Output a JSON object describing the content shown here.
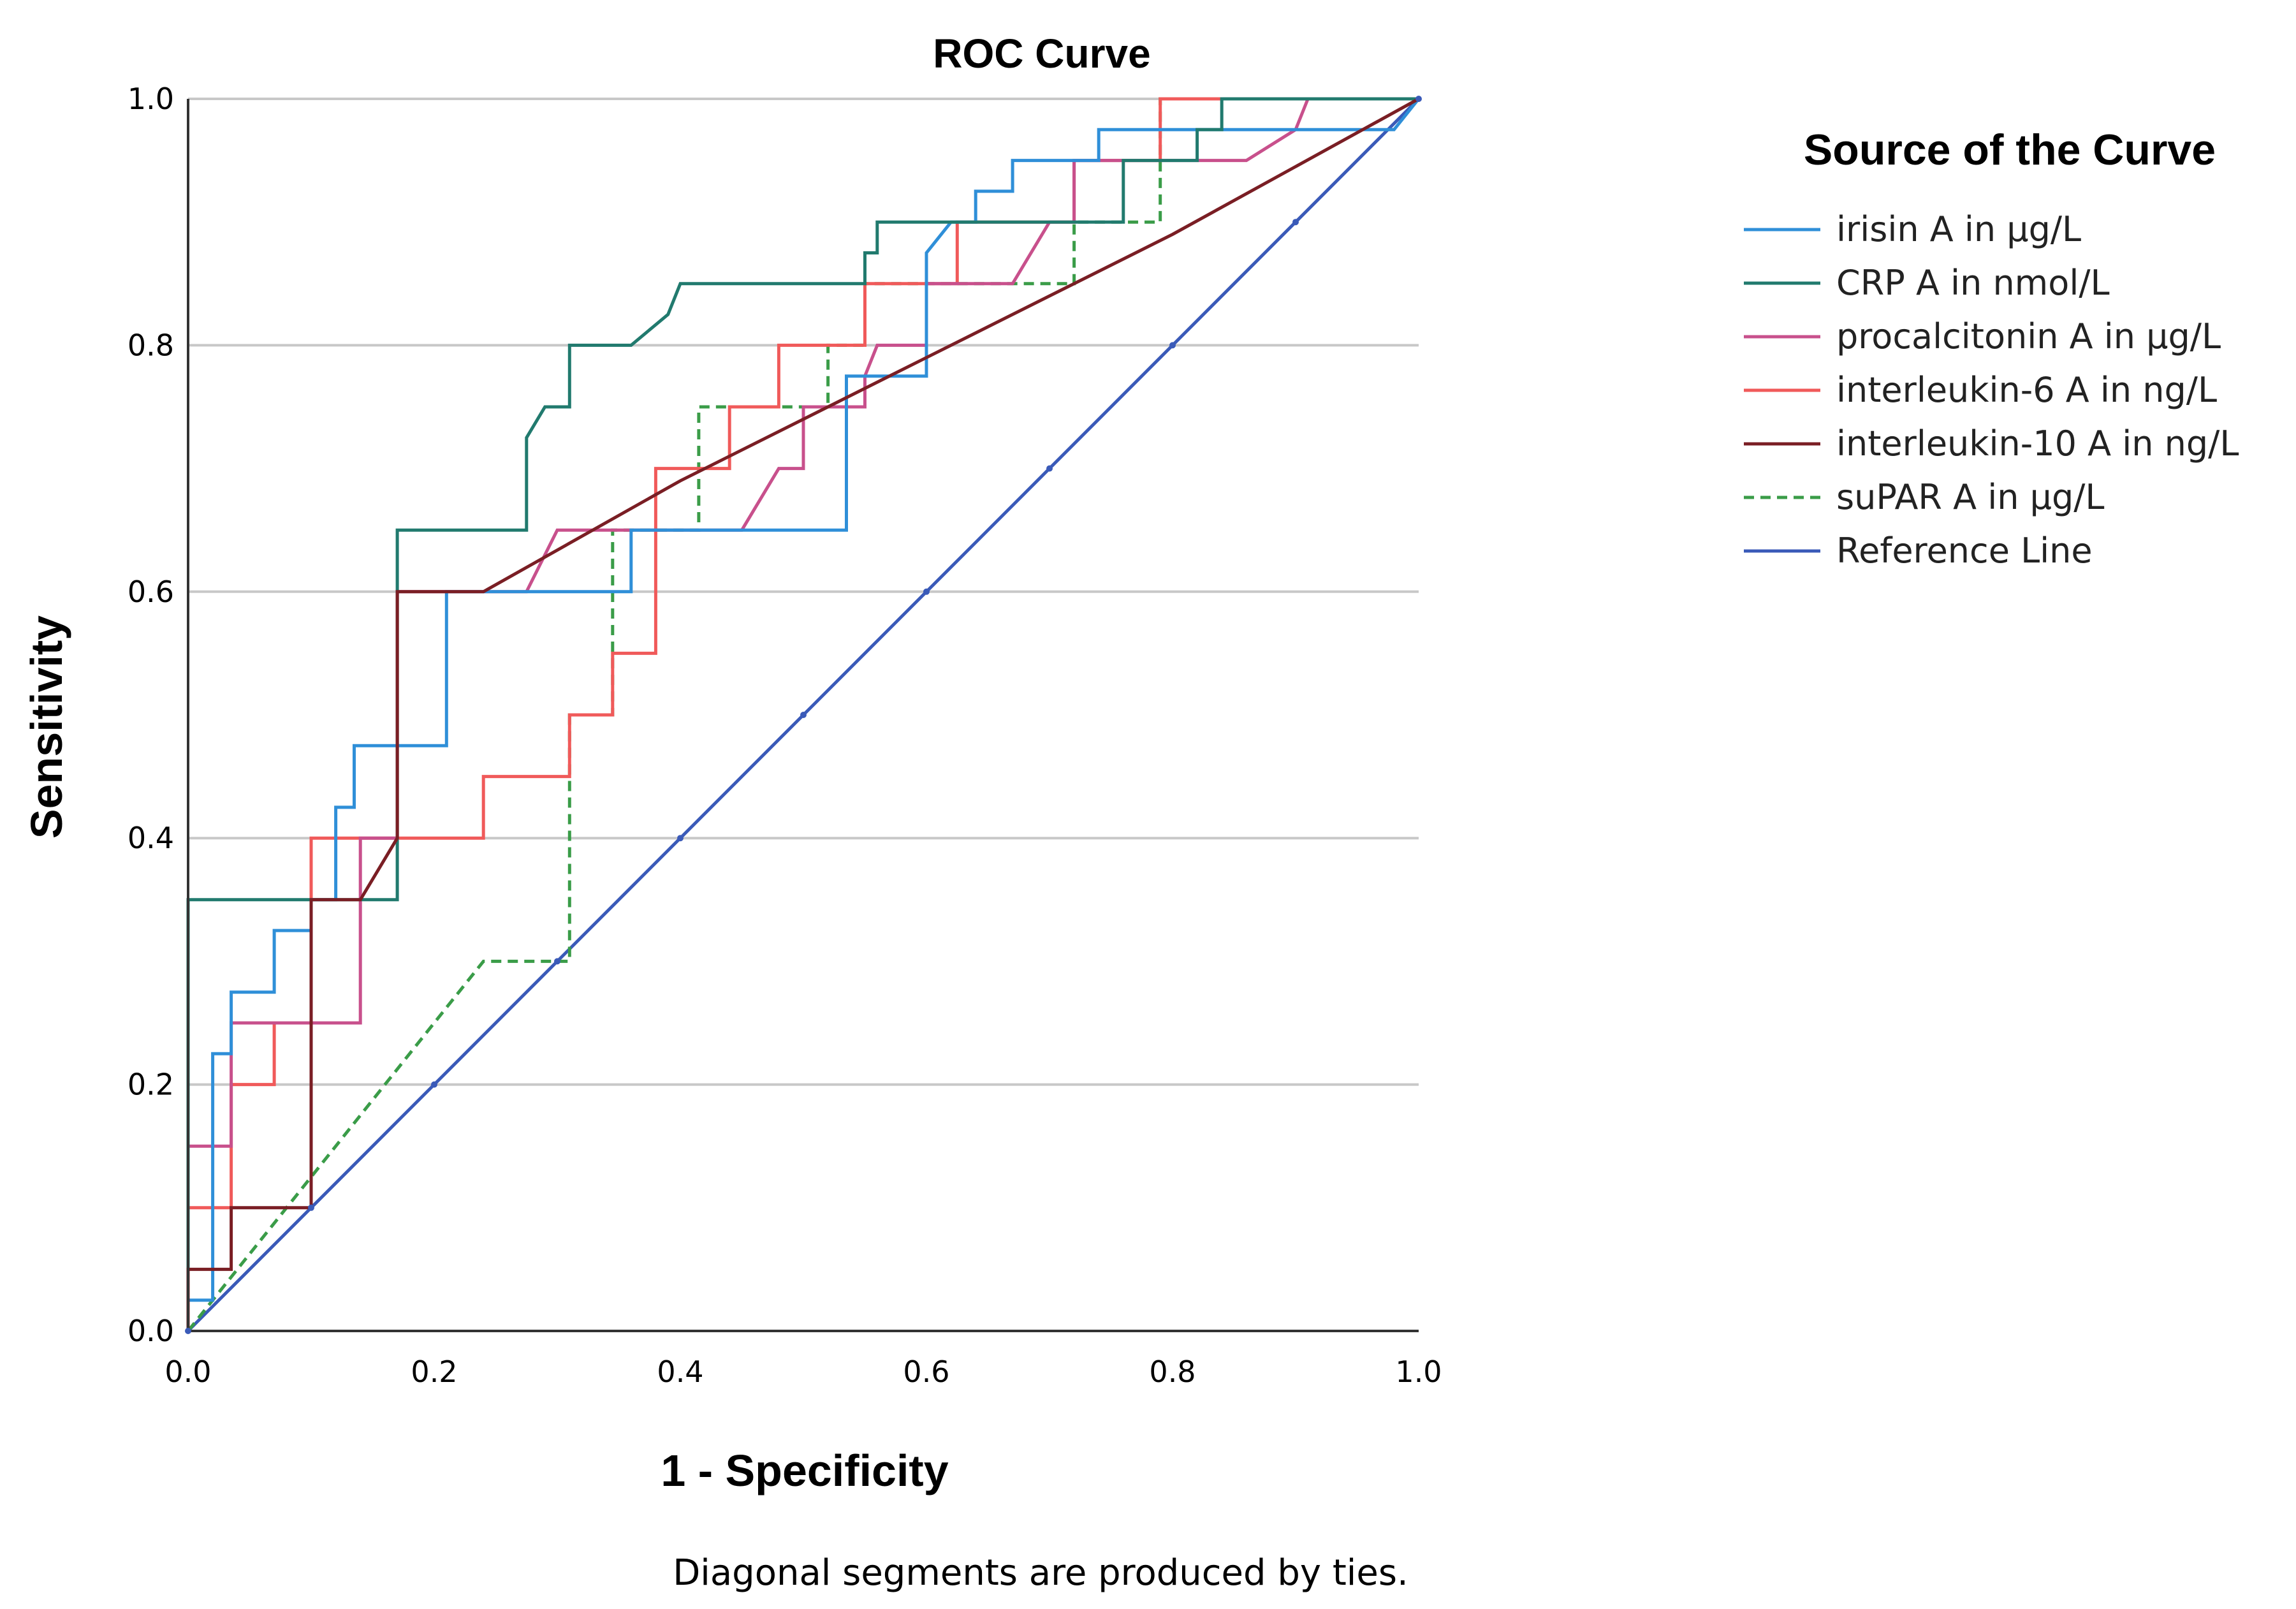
{
  "chart_data": {
    "type": "line",
    "title": "ROC Curve",
    "xlabel": "1 - Specificity",
    "ylabel": "Sensitivity",
    "xlim": [
      0,
      1
    ],
    "ylim": [
      0,
      1
    ],
    "x_ticks": [
      "0.0",
      "0.2",
      "0.4",
      "0.6",
      "0.8",
      "1.0"
    ],
    "y_ticks": [
      "0.0",
      "0.2",
      "0.4",
      "0.6",
      "0.8",
      "1.0"
    ],
    "grid": "horizontal",
    "legend_title": "Source of the Curve",
    "legend_position": "right",
    "footnote": "Diagonal segments are produced by ties.",
    "series": [
      {
        "name": "irisin A in µg/L",
        "color": "#2f8fd8",
        "dashed": false,
        "points": [
          [
            0,
            0
          ],
          [
            0,
            0.025
          ],
          [
            0.02,
            0.025
          ],
          [
            0.02,
            0.225
          ],
          [
            0.035,
            0.225
          ],
          [
            0.035,
            0.275
          ],
          [
            0.07,
            0.275
          ],
          [
            0.07,
            0.325
          ],
          [
            0.1,
            0.325
          ],
          [
            0.1,
            0.35
          ],
          [
            0.12,
            0.35
          ],
          [
            0.12,
            0.425
          ],
          [
            0.135,
            0.425
          ],
          [
            0.135,
            0.475
          ],
          [
            0.21,
            0.475
          ],
          [
            0.21,
            0.6
          ],
          [
            0.36,
            0.6
          ],
          [
            0.36,
            0.65
          ],
          [
            0.535,
            0.65
          ],
          [
            0.535,
            0.775
          ],
          [
            0.6,
            0.775
          ],
          [
            0.6,
            0.875
          ],
          [
            0.62,
            0.9
          ],
          [
            0.64,
            0.9
          ],
          [
            0.64,
            0.925
          ],
          [
            0.67,
            0.925
          ],
          [
            0.67,
            0.95
          ],
          [
            0.74,
            0.95
          ],
          [
            0.74,
            0.975
          ],
          [
            0.98,
            0.975
          ],
          [
            1,
            1
          ]
        ]
      },
      {
        "name": "CRP A in nmol/L",
        "color": "#217a6e",
        "dashed": false,
        "points": [
          [
            0,
            0
          ],
          [
            0,
            0.35
          ],
          [
            0.17,
            0.35
          ],
          [
            0.17,
            0.65
          ],
          [
            0.275,
            0.65
          ],
          [
            0.275,
            0.725
          ],
          [
            0.29,
            0.75
          ],
          [
            0.31,
            0.75
          ],
          [
            0.31,
            0.8
          ],
          [
            0.36,
            0.8
          ],
          [
            0.39,
            0.825
          ],
          [
            0.4,
            0.85
          ],
          [
            0.55,
            0.85
          ],
          [
            0.55,
            0.875
          ],
          [
            0.56,
            0.875
          ],
          [
            0.56,
            0.9
          ],
          [
            0.76,
            0.9
          ],
          [
            0.76,
            0.95
          ],
          [
            0.82,
            0.95
          ],
          [
            0.82,
            0.975
          ],
          [
            0.84,
            0.975
          ],
          [
            0.84,
            1
          ],
          [
            1,
            1
          ]
        ]
      },
      {
        "name": "procalcitonin A in µg/L",
        "color": "#c8508c",
        "dashed": false,
        "points": [
          [
            0,
            0
          ],
          [
            0,
            0.15
          ],
          [
            0.035,
            0.15
          ],
          [
            0.035,
            0.25
          ],
          [
            0.14,
            0.25
          ],
          [
            0.14,
            0.4
          ],
          [
            0.17,
            0.4
          ],
          [
            0.17,
            0.6
          ],
          [
            0.275,
            0.6
          ],
          [
            0.3,
            0.65
          ],
          [
            0.45,
            0.65
          ],
          [
            0.48,
            0.7
          ],
          [
            0.5,
            0.7
          ],
          [
            0.5,
            0.75
          ],
          [
            0.55,
            0.75
          ],
          [
            0.55,
            0.775
          ],
          [
            0.56,
            0.8
          ],
          [
            0.6,
            0.8
          ],
          [
            0.6,
            0.85
          ],
          [
            0.67,
            0.85
          ],
          [
            0.7,
            0.9
          ],
          [
            0.72,
            0.9
          ],
          [
            0.72,
            0.95
          ],
          [
            0.86,
            0.95
          ],
          [
            0.9,
            0.975
          ],
          [
            0.91,
            1
          ],
          [
            1,
            1
          ]
        ]
      },
      {
        "name": "interleukin-6 A in ng/L",
        "color": "#f05a5a",
        "dashed": false,
        "points": [
          [
            0,
            0
          ],
          [
            0,
            0.1
          ],
          [
            0.035,
            0.1
          ],
          [
            0.035,
            0.2
          ],
          [
            0.07,
            0.2
          ],
          [
            0.07,
            0.25
          ],
          [
            0.1,
            0.25
          ],
          [
            0.1,
            0.4
          ],
          [
            0.24,
            0.4
          ],
          [
            0.24,
            0.45
          ],
          [
            0.31,
            0.45
          ],
          [
            0.31,
            0.5
          ],
          [
            0.345,
            0.5
          ],
          [
            0.345,
            0.55
          ],
          [
            0.38,
            0.55
          ],
          [
            0.38,
            0.7
          ],
          [
            0.44,
            0.7
          ],
          [
            0.44,
            0.75
          ],
          [
            0.48,
            0.75
          ],
          [
            0.48,
            0.8
          ],
          [
            0.55,
            0.8
          ],
          [
            0.55,
            0.85
          ],
          [
            0.625,
            0.85
          ],
          [
            0.625,
            0.9
          ],
          [
            0.72,
            0.9
          ],
          [
            0.72,
            0.95
          ],
          [
            0.79,
            0.95
          ],
          [
            0.79,
            1
          ],
          [
            1,
            1
          ]
        ]
      },
      {
        "name": "interleukin-10 A in ng/L",
        "color": "#7a1e24",
        "dashed": false,
        "points": [
          [
            0,
            0
          ],
          [
            0,
            0.05
          ],
          [
            0.035,
            0.05
          ],
          [
            0.035,
            0.1
          ],
          [
            0.1,
            0.1
          ],
          [
            0.1,
            0.35
          ],
          [
            0.14,
            0.35
          ],
          [
            0.17,
            0.4
          ],
          [
            0.17,
            0.6
          ],
          [
            0.24,
            0.6
          ],
          [
            0.4,
            0.69
          ],
          [
            0.6,
            0.79
          ],
          [
            0.8,
            0.89
          ],
          [
            1,
            1
          ]
        ]
      },
      {
        "name": "suPAR A in µg/L",
        "color": "#3a9c48",
        "dashed": true,
        "points": [
          [
            0,
            0
          ],
          [
            0.1,
            0.125
          ],
          [
            0.24,
            0.3
          ],
          [
            0.31,
            0.3
          ],
          [
            0.31,
            0.5
          ],
          [
            0.345,
            0.5
          ],
          [
            0.345,
            0.65
          ],
          [
            0.415,
            0.65
          ],
          [
            0.415,
            0.75
          ],
          [
            0.52,
            0.75
          ],
          [
            0.52,
            0.8
          ],
          [
            0.55,
            0.8
          ],
          [
            0.55,
            0.85
          ],
          [
            0.72,
            0.85
          ],
          [
            0.72,
            0.9
          ],
          [
            0.79,
            0.9
          ],
          [
            0.79,
            1
          ],
          [
            1,
            1
          ]
        ]
      },
      {
        "name": "Reference Line",
        "color": "#3a5ab8",
        "dashed": false,
        "points": [
          [
            0,
            0
          ],
          [
            1,
            1
          ]
        ]
      }
    ]
  }
}
